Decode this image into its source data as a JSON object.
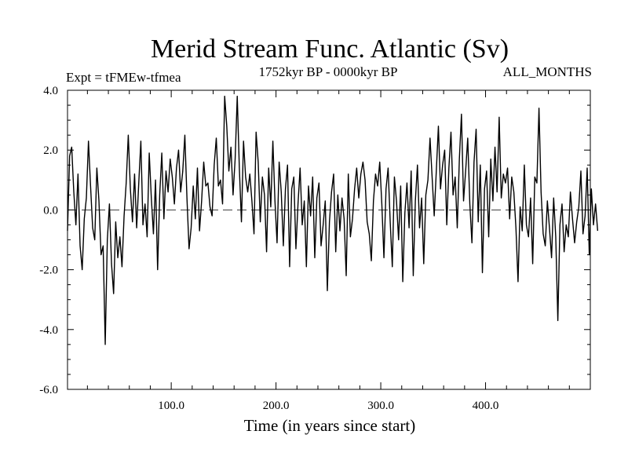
{
  "chart_data": {
    "type": "line",
    "title": "Merid Stream Func. Atlantic (Sv)",
    "subtitle_left": "Expt = tFMEw-tfmea",
    "subtitle_center": "1752kyr BP - 0000kyr BP",
    "subtitle_right": "ALL_MONTHS",
    "xlabel": "Time (in years since start)",
    "ylabel": "",
    "xlim": [
      1,
      500
    ],
    "ylim": [
      -6.0,
      4.0
    ],
    "xticks": [
      100.0,
      200.0,
      300.0,
      400.0
    ],
    "xtick_labels": [
      "100.0",
      "200.0",
      "300.0",
      "400.0"
    ],
    "yticks": [
      -6.0,
      -4.0,
      -2.0,
      0.0,
      2.0,
      4.0
    ],
    "ytick_labels": [
      "-6.0",
      "-4.0",
      "-2.0",
      "0.0",
      "2.0",
      "4.0"
    ],
    "reference_line": 0.0,
    "reference_style": "dashed",
    "grid": false,
    "series": [
      {
        "name": "Merid Stream Func. Atlantic",
        "x_start": 1,
        "x_step": 2,
        "values": [
          -0.7,
          1.8,
          2.1,
          0.6,
          -0.5,
          1.2,
          -1.2,
          -2.0,
          -0.3,
          0.4,
          2.3,
          0.8,
          -0.6,
          -1.0,
          1.4,
          0.3,
          -1.5,
          -1.2,
          -4.5,
          -1.0,
          0.2,
          -1.8,
          -2.8,
          -0.4,
          -1.6,
          -0.9,
          -1.9,
          -0.2,
          0.9,
          2.5,
          0.7,
          -0.4,
          1.2,
          -0.6,
          0.9,
          2.3,
          -0.5,
          0.2,
          -0.9,
          1.9,
          0.4,
          -0.8,
          1.0,
          -2.0,
          0.5,
          1.9,
          -0.3,
          1.3,
          0.6,
          1.7,
          1.1,
          0.2,
          1.4,
          2.0,
          0.6,
          1.3,
          2.5,
          0.4,
          -1.3,
          -0.6,
          0.8,
          -0.3,
          1.4,
          -0.7,
          0.3,
          1.6,
          0.8,
          0.9,
          0.1,
          -0.2,
          1.5,
          2.4,
          0.8,
          1.0,
          0.2,
          3.8,
          2.8,
          1.3,
          2.1,
          0.5,
          1.7,
          3.8,
          1.4,
          -0.4,
          2.3,
          1.1,
          0.6,
          1.2,
          0.3,
          -0.8,
          2.6,
          1.6,
          -0.4,
          1.1,
          0.5,
          -1.4,
          1.4,
          0.1,
          2.3,
          0.3,
          -1.1,
          1.6,
          0.6,
          -1.2,
          0.7,
          1.5,
          -1.9,
          0.7,
          1.1,
          -1.3,
          0.2,
          1.4,
          -0.5,
          0.3,
          -1.9,
          0.8,
          -0.2,
          1.1,
          -1.6,
          0.4,
          0.9,
          -1.2,
          -0.5,
          0.3,
          -2.7,
          -0.4,
          0.6,
          1.2,
          -1.4,
          0.5,
          -0.7,
          0.4,
          -0.3,
          -2.2,
          1.2,
          -0.9,
          -0.3,
          0.7,
          1.4,
          0.4,
          1.2,
          1.6,
          1.0,
          -0.4,
          -0.8,
          -1.7,
          0.3,
          1.2,
          0.8,
          1.6,
          0.2,
          -1.6,
          0.7,
          1.4,
          -0.4,
          -1.9,
          1.1,
          0.3,
          -1.0,
          0.8,
          -2.4,
          -0.1,
          0.9,
          -0.6,
          1.3,
          -2.2,
          0.3,
          1.5,
          -0.6,
          0.4,
          -1.8,
          0.5,
          1.0,
          2.4,
          1.1,
          -0.2,
          1.3,
          2.8,
          0.7,
          1.5,
          2.0,
          -0.5,
          1.4,
          2.6,
          0.5,
          1.1,
          -0.6,
          1.7,
          3.2,
          0.3,
          1.3,
          2.4,
          0.2,
          -1.1,
          1.6,
          2.7,
          -0.4,
          1.5,
          -2.1,
          0.7,
          1.3,
          -0.9,
          1.7,
          0.3,
          2.1,
          0.6,
          3.1,
          0.4,
          1.2,
          0.9,
          1.4,
          -0.3,
          1.1,
          0.6,
          -0.6,
          -2.4,
          0.1,
          -0.7,
          1.5,
          -0.5,
          -0.9,
          0.4,
          -1.8,
          1.1,
          0.9,
          3.4,
          0.6,
          -0.8,
          -1.2,
          0.3,
          -0.6,
          -1.6,
          0.4,
          -0.9,
          -3.7,
          -0.5,
          0.2,
          -1.4,
          -0.5,
          -0.9,
          0.6,
          -0.3,
          -1.1,
          -0.4,
          0.1,
          1.3,
          -0.8,
          -0.2,
          1.4,
          -1.5,
          0.7,
          -0.5,
          0.2,
          -0.7
        ]
      }
    ]
  }
}
